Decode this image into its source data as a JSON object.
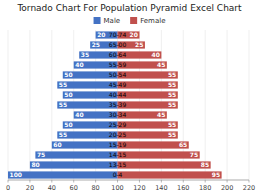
{
  "chart_data": {
    "type": "bar",
    "orientation": "horizontal",
    "title": "Tornado Chart For Population Pyramid Excel Chart",
    "categories": [
      "70-74",
      "65-00",
      "60-64",
      "55-59",
      "50-54",
      "45-49",
      "40-44",
      "35-39",
      "30-34",
      "25-29",
      "20-25",
      "15-19",
      "14-15",
      "13-15",
      "0-4"
    ],
    "center": 100,
    "series": [
      {
        "name": "Male",
        "color": "#4472C4",
        "values": [
          20,
          25,
          35,
          40,
          50,
          55,
          50,
          55,
          40,
          50,
          55,
          60,
          75,
          80,
          100
        ]
      },
      {
        "name": "Female",
        "color": "#C0504D",
        "values": [
          20,
          25,
          40,
          45,
          55,
          55,
          55,
          55,
          45,
          55,
          55,
          65,
          75,
          85,
          95
        ]
      }
    ],
    "xlim": [
      0,
      220
    ],
    "xticks": [
      0,
      20,
      40,
      60,
      80,
      100,
      120,
      140,
      160,
      180,
      200,
      220
    ],
    "grid": true,
    "data_labels": true
  }
}
